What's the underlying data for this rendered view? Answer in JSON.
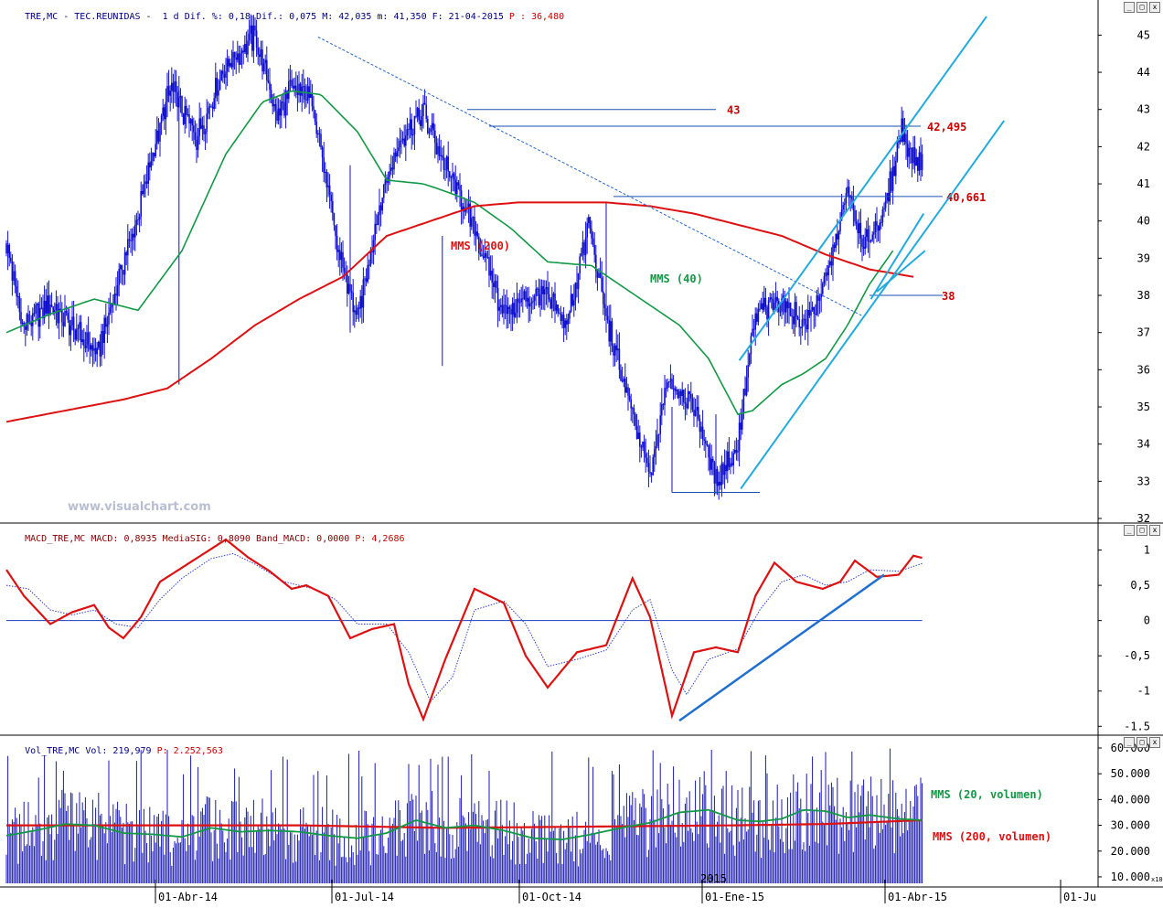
{
  "headers": {
    "price": {
      "symbol": "TRE,MC - TEC.REUNIDAS -  1 d",
      "stats": " Dif. %: 0,18 Dif.: 0,075 M: 42,035 m: 41,350 F: 21-04-2015 ",
      "p_label": "P : 36,480"
    },
    "macd": {
      "main": "MACD_TRE,MC MACD: 0,8935 MediaSIG: 0,8090 Band_MACD: 0,0000 ",
      "p_label": "P: 4,2686"
    },
    "volume": {
      "main": "Vol_TRE,MC Vol: 219,979 ",
      "p_label": "P: 2.252,563"
    }
  },
  "watermark": "www.visualchart.com",
  "window_buttons": {
    "minimize": "_",
    "restore": "□",
    "close": "x"
  },
  "colors": {
    "price": "#1010cc",
    "mms40": "#119944",
    "mms200": "#dd1111",
    "trend": "#22aadd",
    "level": "#1a50b0",
    "macd": "#dd1111",
    "signal": "#3040cc",
    "volume": "#1818b0",
    "header_red": "#cc0000"
  },
  "chart_data": [
    {
      "type": "line",
      "panel": "price",
      "ylim": [
        32,
        45.6
      ],
      "y_ticks": [
        32,
        33,
        34,
        35,
        36,
        37,
        38,
        39,
        40,
        41,
        42,
        43,
        44,
        45
      ],
      "y_tick_labels": [
        "32",
        "33",
        "34",
        "35",
        "36",
        "37",
        "38",
        "39",
        "40",
        "41",
        "42",
        "43",
        "44",
        "45"
      ],
      "x_tick_labels": [
        "01-Abr-14",
        "01-Jul-14",
        "01-Oct-14",
        "01-Ene-15",
        "01-Abr-15",
        "01-Ju"
      ],
      "x_year_label": "2015",
      "price_keypoints": [
        [
          0,
          39.4
        ],
        [
          12,
          37.1
        ],
        [
          30,
          37.8
        ],
        [
          48,
          37.0
        ],
        [
          62,
          36.4
        ],
        [
          75,
          38.2
        ],
        [
          90,
          40.2
        ],
        [
          112,
          43.6
        ],
        [
          130,
          42.2
        ],
        [
          150,
          44.2
        ],
        [
          170,
          45.0
        ],
        [
          185,
          42.8
        ],
        [
          195,
          43.6
        ],
        [
          210,
          43.2
        ],
        [
          225,
          39.5
        ],
        [
          240,
          37.3
        ],
        [
          255,
          40.5
        ],
        [
          270,
          42.3
        ],
        [
          285,
          42.9
        ],
        [
          300,
          41.5
        ],
        [
          318,
          40.0
        ],
        [
          340,
          37.5
        ],
        [
          365,
          38.1
        ],
        [
          383,
          37.2
        ],
        [
          398,
          39.9
        ],
        [
          410,
          37.4
        ],
        [
          425,
          35.2
        ],
        [
          440,
          33.1
        ],
        [
          452,
          35.8
        ],
        [
          470,
          35.0
        ],
        [
          485,
          33.0
        ],
        [
          500,
          34.0
        ],
        [
          512,
          37.5
        ],
        [
          530,
          37.9
        ],
        [
          545,
          37.2
        ],
        [
          560,
          38.3
        ],
        [
          575,
          40.9
        ],
        [
          585,
          39.3
        ],
        [
          600,
          40.2
        ],
        [
          612,
          42.5
        ],
        [
          620,
          41.6
        ]
      ],
      "series": [
        {
          "name": "MMS (40)",
          "label": "MMS (40)",
          "color": "#119944",
          "points": [
            [
              0,
              37.0
            ],
            [
              30,
              37.5
            ],
            [
              60,
              37.9
            ],
            [
              90,
              37.6
            ],
            [
              120,
              39.2
            ],
            [
              150,
              41.8
            ],
            [
              175,
              43.2
            ],
            [
              195,
              43.5
            ],
            [
              215,
              43.4
            ],
            [
              240,
              42.4
            ],
            [
              260,
              41.1
            ],
            [
              285,
              41.0
            ],
            [
              300,
              40.8
            ],
            [
              320,
              40.5
            ],
            [
              345,
              39.8
            ],
            [
              370,
              38.9
            ],
            [
              400,
              38.8
            ],
            [
              430,
              38.0
            ],
            [
              460,
              37.2
            ],
            [
              480,
              36.3
            ],
            [
              500,
              34.8
            ],
            [
              510,
              34.9
            ],
            [
              530,
              35.6
            ],
            [
              545,
              35.9
            ],
            [
              560,
              36.3
            ],
            [
              575,
              37.2
            ],
            [
              590,
              38.3
            ],
            [
              606,
              39.2
            ]
          ]
        },
        {
          "name": "MMS (200)",
          "label": "MMS (200)",
          "color": "#dd1111",
          "points": [
            [
              0,
              34.6
            ],
            [
              40,
              34.9
            ],
            [
              80,
              35.2
            ],
            [
              110,
              35.5
            ],
            [
              140,
              36.3
            ],
            [
              170,
              37.2
            ],
            [
              200,
              37.9
            ],
            [
              230,
              38.5
            ],
            [
              260,
              39.6
            ],
            [
              290,
              40.0
            ],
            [
              320,
              40.4
            ],
            [
              350,
              40.5
            ],
            [
              380,
              40.5
            ],
            [
              410,
              40.5
            ],
            [
              440,
              40.4
            ],
            [
              470,
              40.2
            ],
            [
              500,
              39.9
            ],
            [
              530,
              39.6
            ],
            [
              560,
              39.1
            ],
            [
              590,
              38.7
            ],
            [
              620,
              38.5
            ]
          ]
        }
      ],
      "horizontal_levels": [
        {
          "label": "43",
          "value": 43.0,
          "from": 315,
          "to": 485
        },
        {
          "label": "42,495",
          "value": 42.55,
          "from": 330,
          "to": 625
        },
        {
          "label": "40,661",
          "value": 40.66,
          "from": 415,
          "to": 640
        },
        {
          "label": "38",
          "value": 38.0,
          "from": 590,
          "to": 640
        },
        {
          "label": "",
          "value": 32.7,
          "from": 455,
          "to": 515
        }
      ],
      "trend_lines": [
        {
          "style": "dashed",
          "from": [
            213,
            44.95
          ],
          "to": [
            585,
            37.45
          ]
        },
        {
          "style": "solid",
          "from": [
            501,
            36.25
          ],
          "to": [
            670,
            45.5
          ]
        },
        {
          "style": "solid",
          "from": [
            502,
            32.8
          ],
          "to": [
            682,
            42.7
          ]
        },
        {
          "style": "solid",
          "from": [
            591,
            37.9
          ],
          "to": [
            627,
            40.2
          ]
        },
        {
          "style": "solid",
          "from": [
            595,
            38.1
          ],
          "to": [
            628,
            39.2
          ]
        }
      ]
    },
    {
      "type": "line",
      "panel": "macd",
      "ylim": [
        -1.6,
        1.15
      ],
      "y_ticks": [
        1,
        0.5,
        0,
        -0.5,
        -1,
        -1.5
      ],
      "y_tick_labels": [
        "1",
        "0,5",
        "0",
        "-0,5",
        "-1",
        "-1.5"
      ],
      "zero_line": 0,
      "series": [
        {
          "name": "MACD",
          "color": "#dd1111",
          "points": [
            [
              0,
              0.72
            ],
            [
              12,
              0.35
            ],
            [
              30,
              -0.05
            ],
            [
              45,
              0.12
            ],
            [
              60,
              0.22
            ],
            [
              70,
              -0.1
            ],
            [
              80,
              -0.25
            ],
            [
              92,
              0.05
            ],
            [
              105,
              0.55
            ],
            [
              120,
              0.75
            ],
            [
              135,
              0.95
            ],
            [
              150,
              1.15
            ],
            [
              165,
              0.9
            ],
            [
              180,
              0.7
            ],
            [
              195,
              0.45
            ],
            [
              205,
              0.5
            ],
            [
              220,
              0.35
            ],
            [
              235,
              -0.25
            ],
            [
              250,
              -0.12
            ],
            [
              265,
              -0.05
            ],
            [
              275,
              -0.9
            ],
            [
              285,
              -1.4
            ],
            [
              300,
              -0.55
            ],
            [
              320,
              0.45
            ],
            [
              340,
              0.25
            ],
            [
              355,
              -0.5
            ],
            [
              370,
              -0.95
            ],
            [
              390,
              -0.45
            ],
            [
              410,
              -0.35
            ],
            [
              428,
              0.6
            ],
            [
              440,
              0.05
            ],
            [
              455,
              -1.35
            ],
            [
              470,
              -0.45
            ],
            [
              485,
              -0.38
            ],
            [
              500,
              -0.45
            ],
            [
              512,
              0.35
            ],
            [
              525,
              0.82
            ],
            [
              540,
              0.55
            ],
            [
              558,
              0.45
            ],
            [
              570,
              0.55
            ],
            [
              580,
              0.85
            ],
            [
              595,
              0.62
            ],
            [
              610,
              0.65
            ],
            [
              620,
              0.92
            ],
            [
              626,
              0.89
            ]
          ]
        },
        {
          "name": "MediaSIG",
          "color": "#3040cc",
          "points": [
            [
              0,
              0.5
            ],
            [
              15,
              0.45
            ],
            [
              30,
              0.15
            ],
            [
              45,
              0.08
            ],
            [
              60,
              0.15
            ],
            [
              75,
              -0.05
            ],
            [
              90,
              -0.1
            ],
            [
              105,
              0.3
            ],
            [
              120,
              0.6
            ],
            [
              140,
              0.88
            ],
            [
              155,
              0.95
            ],
            [
              170,
              0.8
            ],
            [
              190,
              0.55
            ],
            [
              210,
              0.45
            ],
            [
              225,
              0.3
            ],
            [
              240,
              -0.05
            ],
            [
              260,
              -0.05
            ],
            [
              275,
              -0.45
            ],
            [
              290,
              -1.15
            ],
            [
              305,
              -0.8
            ],
            [
              320,
              0.15
            ],
            [
              340,
              0.28
            ],
            [
              355,
              -0.05
            ],
            [
              370,
              -0.65
            ],
            [
              390,
              -0.55
            ],
            [
              410,
              -0.42
            ],
            [
              428,
              0.15
            ],
            [
              440,
              0.3
            ],
            [
              455,
              -0.7
            ],
            [
              465,
              -1.05
            ],
            [
              480,
              -0.55
            ],
            [
              500,
              -0.4
            ],
            [
              515,
              0.15
            ],
            [
              530,
              0.55
            ],
            [
              545,
              0.65
            ],
            [
              560,
              0.5
            ],
            [
              575,
              0.55
            ],
            [
              590,
              0.72
            ],
            [
              610,
              0.7
            ],
            [
              626,
              0.81
            ]
          ]
        }
      ],
      "support_line": {
        "from": [
          460,
          -1.42
        ],
        "to": [
          600,
          0.65
        ]
      }
    },
    {
      "type": "bar",
      "panel": "volume",
      "ylim": [
        7500,
        60000
      ],
      "y_ticks": [
        10000,
        20000,
        30000,
        40000,
        50000,
        60000
      ],
      "y_tick_labels": [
        "10.000",
        "20.000",
        "30.000",
        "40.000",
        "50.000",
        "60.000"
      ],
      "axis_note": "x10",
      "series": [
        {
          "name": "MMS (20, volumen)",
          "label": "MMS (20, volumen)",
          "color": "#119944",
          "points": [
            [
              0,
              26000
            ],
            [
              20,
              28000
            ],
            [
              40,
              30500
            ],
            [
              60,
              30000
            ],
            [
              80,
              27000
            ],
            [
              100,
              26500
            ],
            [
              120,
              25500
            ],
            [
              140,
              29000
            ],
            [
              160,
              27500
            ],
            [
              180,
              28000
            ],
            [
              200,
              27500
            ],
            [
              220,
              26000
            ],
            [
              240,
              25000
            ],
            [
              260,
              27000
            ],
            [
              280,
              32000
            ],
            [
              300,
              29000
            ],
            [
              320,
              30000
            ],
            [
              340,
              28000
            ],
            [
              360,
              25000
            ],
            [
              380,
              24500
            ],
            [
              400,
              26500
            ],
            [
              420,
              29000
            ],
            [
              440,
              31000
            ],
            [
              460,
              35000
            ],
            [
              480,
              36000
            ],
            [
              500,
              32000
            ],
            [
              515,
              31500
            ],
            [
              530,
              32500
            ],
            [
              545,
              36000
            ],
            [
              560,
              35500
            ],
            [
              575,
              33000
            ],
            [
              590,
              34000
            ],
            [
              610,
              32500
            ],
            [
              626,
              32000
            ]
          ]
        },
        {
          "name": "MMS (200, volumen)",
          "label": "MMS (200, volumen)",
          "color": "#dd1111",
          "points": [
            [
              0,
              30000
            ],
            [
              100,
              30000
            ],
            [
              200,
              30000
            ],
            [
              300,
              29000
            ],
            [
              400,
              29500
            ],
            [
              500,
              30000
            ],
            [
              560,
              30500
            ],
            [
              626,
              32000
            ]
          ]
        }
      ]
    }
  ]
}
